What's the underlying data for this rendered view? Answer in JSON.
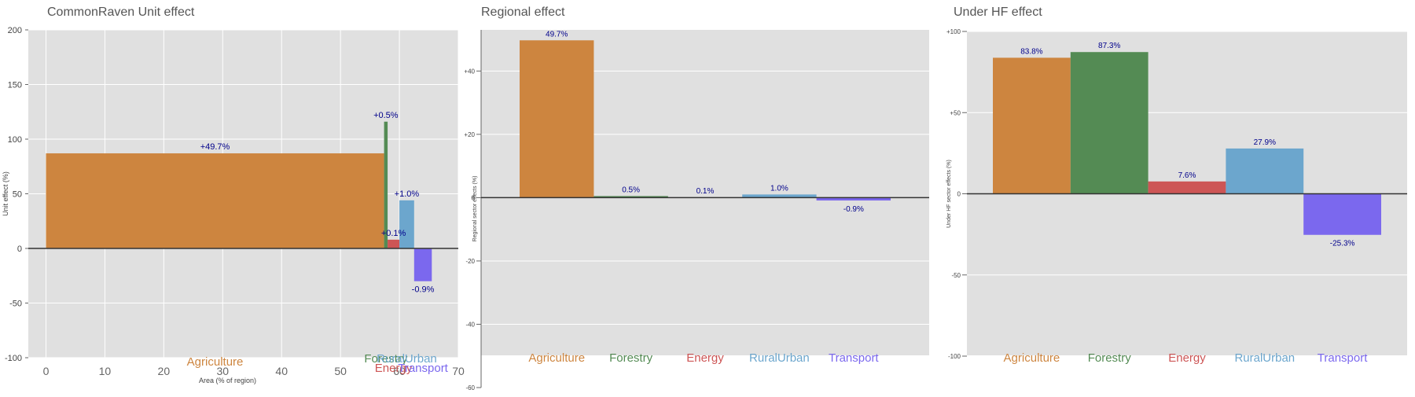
{
  "colors": {
    "panel_bg": "#e0e0e0",
    "grid": "#ffffff",
    "zero_line": "#333333",
    "value_label": "#00008b",
    "title": "#555555",
    "axis_text": "#444444",
    "Agriculture": "#cd853f",
    "Forestry": "#548b54",
    "Energy": "#cd5555",
    "RuralUrban": "#6ca6cd",
    "Transport": "#7b68ee"
  },
  "chart_data": [
    {
      "type": "bar",
      "variant": "variable-width",
      "title": "CommonRaven Unit effect",
      "xlabel": "Area (% of region)",
      "ylabel": "Unit effect (%)",
      "xlim": [
        -3,
        70
      ],
      "ylim": [
        -100,
        200
      ],
      "xticks": [
        "0",
        "10",
        "20",
        "30",
        "40",
        "50",
        "60",
        "70"
      ],
      "yticks": [
        "200",
        "150",
        "100",
        "50",
        "0",
        "-50",
        "-100"
      ],
      "grid": true,
      "bars": [
        {
          "category": "Agriculture",
          "x_start": 0,
          "x_end": 57.4,
          "value": 87,
          "label": "+49.7%"
        },
        {
          "category": "Forestry",
          "x_start": 57.4,
          "x_end": 58.0,
          "value": 116,
          "label": "+0.5%"
        },
        {
          "category": "Energy",
          "x_start": 58.0,
          "x_end": 60.0,
          "value": 8,
          "label": "+0.1%"
        },
        {
          "category": "RuralUrban",
          "x_start": 60.0,
          "x_end": 62.5,
          "value": 44,
          "label": "+1.0%"
        },
        {
          "category": "Transport",
          "x_start": 62.5,
          "x_end": 65.5,
          "value": -30,
          "label": "-0.9%"
        }
      ]
    },
    {
      "type": "bar",
      "title": "Regional effect",
      "ylabel": "Regional sector effects (%)",
      "ylim": [
        -60,
        53
      ],
      "yticks": [
        "+40",
        "+20",
        "0",
        "-20",
        "-40",
        "-60"
      ],
      "grid": true,
      "categories": [
        "Agriculture",
        "Forestry",
        "Energy",
        "RuralUrban",
        "Transport"
      ],
      "values": [
        49.7,
        0.5,
        0.1,
        1.0,
        -0.9
      ],
      "labels": [
        "49.7%",
        "0.5%",
        "0.1%",
        "1.0%",
        "-0.9%"
      ]
    },
    {
      "type": "bar",
      "title": "Under HF effect",
      "ylabel": "Under HF sector effects (%)",
      "ylim": [
        -100,
        100
      ],
      "yticks": [
        "+100",
        "+50",
        "0",
        "-50",
        "-100"
      ],
      "grid": true,
      "categories": [
        "Agriculture",
        "Forestry",
        "Energy",
        "RuralUrban",
        "Transport"
      ],
      "values": [
        83.8,
        87.3,
        7.6,
        27.9,
        -25.3
      ],
      "labels": [
        "83.8%",
        "87.3%",
        "7.6%",
        "27.9%",
        "-25.3%"
      ]
    }
  ]
}
